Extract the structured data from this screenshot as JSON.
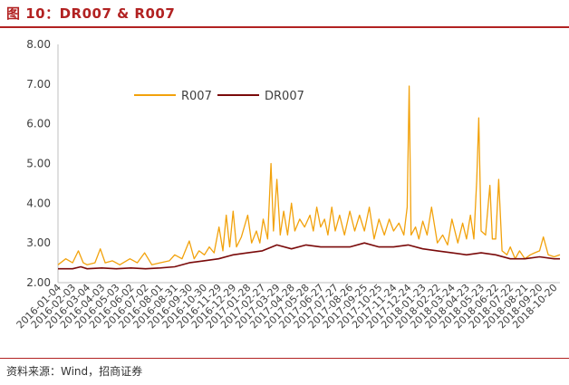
{
  "header": {
    "title": "图 10：DR007 & R007"
  },
  "footer": {
    "source": "资料来源：Wind，招商证券"
  },
  "colors": {
    "r007": "#f2a20c",
    "dr007": "#7a0a0a",
    "accent": "#b22222",
    "axis": "#bfbfbf"
  },
  "chart_data": {
    "type": "line",
    "title": "DR007 & R007",
    "xlabel": "",
    "ylabel": "",
    "ylim": [
      2.0,
      8.0
    ],
    "yticks": [
      "2.00",
      "3.00",
      "4.00",
      "5.00",
      "6.00",
      "7.00",
      "8.00"
    ],
    "grid": false,
    "legend": "top-left inside",
    "xlim": [
      "2016-01-04",
      "2018-11-01"
    ],
    "xticks": [
      "2016-01-04",
      "2016-02-03",
      "2016-03-04",
      "2016-04-03",
      "2016-05-03",
      "2016-06-02",
      "2016-07-02",
      "2016-08-01",
      "2016-08-31",
      "2016-09-30",
      "2016-10-30",
      "2016-11-29",
      "2016-12-29",
      "2017-01-28",
      "2017-02-27",
      "2017-03-29",
      "2017-04-28",
      "2017-05-28",
      "2017-06-27",
      "2017-07-27",
      "2017-08-26",
      "2017-09-25",
      "2017-10-25",
      "2017-11-24",
      "2017-12-24",
      "2018-01-23",
      "2018-02-22",
      "2018-03-24",
      "2018-04-23",
      "2018-05-23",
      "2018-06-22",
      "2018-07-22",
      "2018-08-21",
      "2018-09-20",
      "2018-10-20"
    ],
    "series": [
      {
        "name": "R007",
        "points": [
          [
            "2016-01-04",
            2.45
          ],
          [
            "2016-01-20",
            2.6
          ],
          [
            "2016-02-03",
            2.5
          ],
          [
            "2016-02-15",
            2.8
          ],
          [
            "2016-02-25",
            2.5
          ],
          [
            "2016-03-04",
            2.45
          ],
          [
            "2016-03-20",
            2.5
          ],
          [
            "2016-03-31",
            2.85
          ],
          [
            "2016-04-10",
            2.5
          ],
          [
            "2016-04-25",
            2.55
          ],
          [
            "2016-05-10",
            2.45
          ],
          [
            "2016-05-31",
            2.6
          ],
          [
            "2016-06-15",
            2.5
          ],
          [
            "2016-06-30",
            2.75
          ],
          [
            "2016-07-15",
            2.45
          ],
          [
            "2016-08-01",
            2.5
          ],
          [
            "2016-08-20",
            2.55
          ],
          [
            "2016-08-31",
            2.7
          ],
          [
            "2016-09-15",
            2.6
          ],
          [
            "2016-09-30",
            3.05
          ],
          [
            "2016-10-10",
            2.6
          ],
          [
            "2016-10-20",
            2.8
          ],
          [
            "2016-10-31",
            2.7
          ],
          [
            "2016-11-10",
            2.9
          ],
          [
            "2016-11-20",
            2.75
          ],
          [
            "2016-11-30",
            3.4
          ],
          [
            "2016-12-08",
            2.8
          ],
          [
            "2016-12-15",
            3.7
          ],
          [
            "2016-12-22",
            2.9
          ],
          [
            "2016-12-29",
            3.8
          ],
          [
            "2017-01-05",
            2.9
          ],
          [
            "2017-01-15",
            3.15
          ],
          [
            "2017-01-28",
            3.7
          ],
          [
            "2017-02-05",
            3.0
          ],
          [
            "2017-02-15",
            3.3
          ],
          [
            "2017-02-22",
            3.0
          ],
          [
            "2017-03-01",
            3.6
          ],
          [
            "2017-03-10",
            3.1
          ],
          [
            "2017-03-17",
            5.0
          ],
          [
            "2017-03-22",
            3.3
          ],
          [
            "2017-03-29",
            4.6
          ],
          [
            "2017-04-05",
            3.2
          ],
          [
            "2017-04-12",
            3.8
          ],
          [
            "2017-04-20",
            3.2
          ],
          [
            "2017-04-28",
            4.0
          ],
          [
            "2017-05-05",
            3.3
          ],
          [
            "2017-05-15",
            3.6
          ],
          [
            "2017-05-25",
            3.4
          ],
          [
            "2017-06-05",
            3.7
          ],
          [
            "2017-06-12",
            3.3
          ],
          [
            "2017-06-19",
            3.9
          ],
          [
            "2017-06-27",
            3.4
          ],
          [
            "2017-07-05",
            3.6
          ],
          [
            "2017-07-12",
            3.2
          ],
          [
            "2017-07-20",
            3.9
          ],
          [
            "2017-07-27",
            3.3
          ],
          [
            "2017-08-05",
            3.7
          ],
          [
            "2017-08-15",
            3.2
          ],
          [
            "2017-08-26",
            3.8
          ],
          [
            "2017-09-05",
            3.3
          ],
          [
            "2017-09-15",
            3.7
          ],
          [
            "2017-09-25",
            3.3
          ],
          [
            "2017-10-05",
            3.9
          ],
          [
            "2017-10-15",
            3.1
          ],
          [
            "2017-10-25",
            3.6
          ],
          [
            "2017-11-05",
            3.2
          ],
          [
            "2017-11-15",
            3.6
          ],
          [
            "2017-11-24",
            3.3
          ],
          [
            "2017-12-05",
            3.5
          ],
          [
            "2017-12-15",
            3.2
          ],
          [
            "2017-12-22",
            3.9
          ],
          [
            "2017-12-26",
            6.95
          ],
          [
            "2017-12-30",
            3.2
          ],
          [
            "2018-01-08",
            3.4
          ],
          [
            "2018-01-15",
            3.1
          ],
          [
            "2018-01-23",
            3.55
          ],
          [
            "2018-02-01",
            3.2
          ],
          [
            "2018-02-10",
            3.9
          ],
          [
            "2018-02-22",
            3.0
          ],
          [
            "2018-03-05",
            3.2
          ],
          [
            "2018-03-15",
            2.95
          ],
          [
            "2018-03-24",
            3.6
          ],
          [
            "2018-04-05",
            3.0
          ],
          [
            "2018-04-15",
            3.5
          ],
          [
            "2018-04-23",
            3.1
          ],
          [
            "2018-05-01",
            3.7
          ],
          [
            "2018-05-08",
            3.1
          ],
          [
            "2018-05-14",
            4.6
          ],
          [
            "2018-05-18",
            6.15
          ],
          [
            "2018-05-23",
            3.3
          ],
          [
            "2018-06-01",
            3.2
          ],
          [
            "2018-06-10",
            4.45
          ],
          [
            "2018-06-15",
            3.1
          ],
          [
            "2018-06-22",
            3.1
          ],
          [
            "2018-06-28",
            4.6
          ],
          [
            "2018-07-05",
            2.8
          ],
          [
            "2018-07-15",
            2.7
          ],
          [
            "2018-07-22",
            2.9
          ],
          [
            "2018-08-01",
            2.6
          ],
          [
            "2018-08-10",
            2.8
          ],
          [
            "2018-08-21",
            2.6
          ],
          [
            "2018-09-01",
            2.7
          ],
          [
            "2018-09-10",
            2.75
          ],
          [
            "2018-09-20",
            2.8
          ],
          [
            "2018-09-28",
            3.15
          ],
          [
            "2018-10-08",
            2.7
          ],
          [
            "2018-10-20",
            2.65
          ],
          [
            "2018-11-01",
            2.7
          ]
        ]
      },
      {
        "name": "DR007",
        "points": [
          [
            "2016-01-04",
            2.35
          ],
          [
            "2016-02-03",
            2.35
          ],
          [
            "2016-02-20",
            2.4
          ],
          [
            "2016-03-04",
            2.35
          ],
          [
            "2016-04-03",
            2.37
          ],
          [
            "2016-05-03",
            2.35
          ],
          [
            "2016-06-02",
            2.37
          ],
          [
            "2016-07-02",
            2.35
          ],
          [
            "2016-08-01",
            2.37
          ],
          [
            "2016-08-31",
            2.4
          ],
          [
            "2016-09-30",
            2.5
          ],
          [
            "2016-10-30",
            2.55
          ],
          [
            "2016-11-29",
            2.6
          ],
          [
            "2016-12-29",
            2.7
          ],
          [
            "2017-01-28",
            2.75
          ],
          [
            "2017-02-27",
            2.8
          ],
          [
            "2017-03-29",
            2.95
          ],
          [
            "2017-04-28",
            2.85
          ],
          [
            "2017-05-28",
            2.95
          ],
          [
            "2017-06-27",
            2.9
          ],
          [
            "2017-07-27",
            2.9
          ],
          [
            "2017-08-26",
            2.9
          ],
          [
            "2017-09-25",
            3.0
          ],
          [
            "2017-10-25",
            2.9
          ],
          [
            "2017-11-24",
            2.9
          ],
          [
            "2017-12-24",
            2.95
          ],
          [
            "2018-01-23",
            2.85
          ],
          [
            "2018-02-22",
            2.8
          ],
          [
            "2018-03-24",
            2.75
          ],
          [
            "2018-04-23",
            2.7
          ],
          [
            "2018-05-23",
            2.75
          ],
          [
            "2018-06-22",
            2.7
          ],
          [
            "2018-07-22",
            2.6
          ],
          [
            "2018-08-21",
            2.6
          ],
          [
            "2018-09-20",
            2.65
          ],
          [
            "2018-10-20",
            2.6
          ],
          [
            "2018-11-01",
            2.6
          ]
        ]
      }
    ]
  }
}
